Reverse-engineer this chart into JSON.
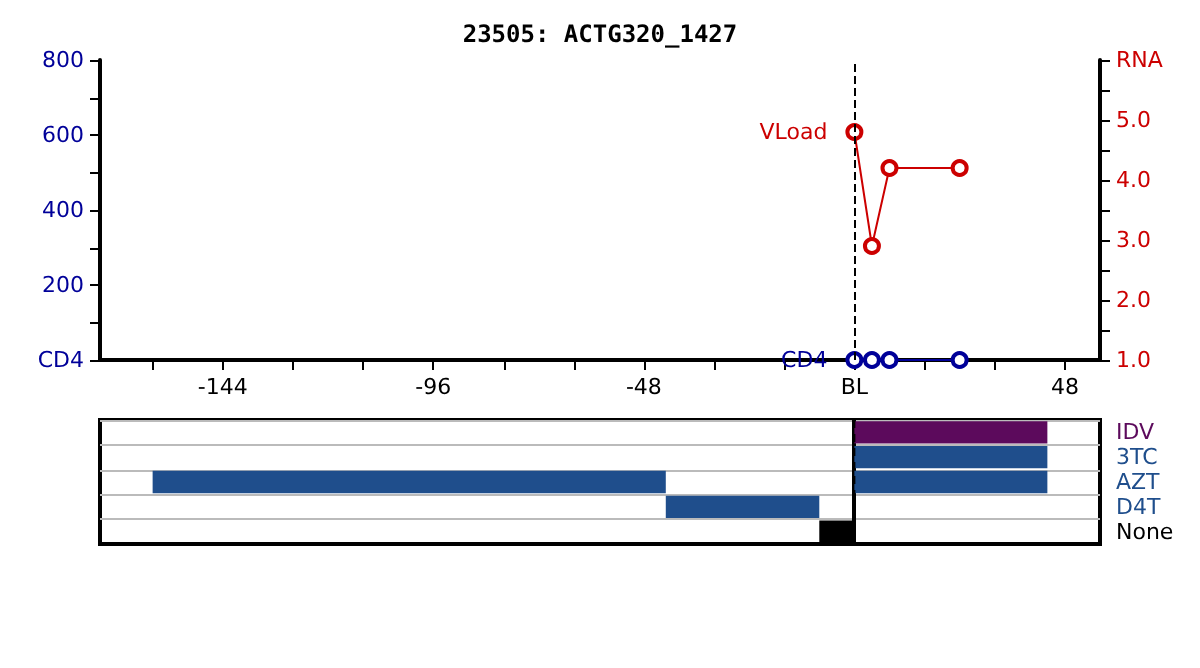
{
  "chart_data": [
    {
      "type": "line",
      "title": "23505: ACTG320_1427",
      "marker": "circle",
      "xlim": [
        -172,
        56
      ],
      "xticks": [
        {
          "value": -160,
          "label": null
        },
        -144,
        {
          "value": -128,
          "label": null
        },
        {
          "value": -112,
          "label": null
        },
        -96,
        {
          "value": -80,
          "label": null
        },
        {
          "value": -64,
          "label": null
        },
        -48,
        {
          "value": -32,
          "label": null
        },
        {
          "value": -16,
          "label": null
        },
        {
          "value": 0,
          "label": "BL"
        },
        {
          "value": 16,
          "label": null
        },
        {
          "value": 32,
          "label": null
        },
        48
      ],
      "ylim": [
        0,
        800
      ],
      "yticks": [
        {
          "value": 0,
          "label": "CD4"
        },
        {
          "value": 100,
          "label": null
        },
        200,
        {
          "value": 300,
          "label": null
        },
        400,
        {
          "value": 500,
          "label": null
        },
        600,
        {
          "value": 700,
          "label": null
        },
        800
      ],
      "y2lim": [
        1,
        6
      ],
      "y2ticks": [
        {
          "value": 1,
          "label": "1.0"
        },
        {
          "value": 1.5,
          "label": null
        },
        {
          "value": 2,
          "label": "2.0"
        },
        {
          "value": 2.5,
          "label": null
        },
        {
          "value": 3,
          "label": "3.0"
        },
        {
          "value": 3.5,
          "label": null
        },
        {
          "value": 4,
          "label": "4.0"
        },
        {
          "value": 4.5,
          "label": null
        },
        {
          "value": 5,
          "label": "5.0"
        },
        {
          "value": 5.5,
          "label": null
        },
        {
          "value": 6,
          "label": "RNA"
        }
      ],
      "ref_lines": [
        {
          "axis": "x",
          "value": 0,
          "color": "#000000",
          "line_style": "dashed"
        }
      ],
      "series": [
        {
          "name": "VLoad",
          "color": "#cc0000",
          "axis": "y2",
          "x": [
            0,
            4,
            8,
            24
          ],
          "values": [
            4.8,
            2.9,
            4.2,
            4.2
          ]
        },
        {
          "name": "CD4",
          "color": "#000099",
          "axis": "y",
          "x": [
            0,
            4,
            8,
            24
          ],
          "values": [
            0,
            0,
            0,
            0
          ]
        }
      ]
    },
    {
      "type": "bar",
      "orientation": "horizontal",
      "xlim": [
        -172,
        56
      ],
      "tick_labels": "y",
      "grid": "y",
      "categories": [
        "IDV",
        "3TC",
        "AZT",
        "D4T",
        "None"
      ],
      "ref_lines": [
        {
          "axis": "x",
          "value": 0,
          "color": "#000000",
          "line_style": "dashed"
        }
      ],
      "series": [
        {
          "colors": [
            "#5c0a5c",
            "#1f4e8c",
            "#1f4e8c",
            "#1f4e8c",
            "#000000"
          ],
          "base": [
            0,
            0,
            0,
            -43,
            -8
          ],
          "values": [
            44,
            44,
            44,
            35,
            8
          ]
        },
        {
          "color": "#1f4e8c",
          "base": [
            null,
            null,
            -160,
            null,
            null
          ],
          "values": [
            null,
            null,
            117,
            null,
            null
          ]
        }
      ]
    }
  ]
}
